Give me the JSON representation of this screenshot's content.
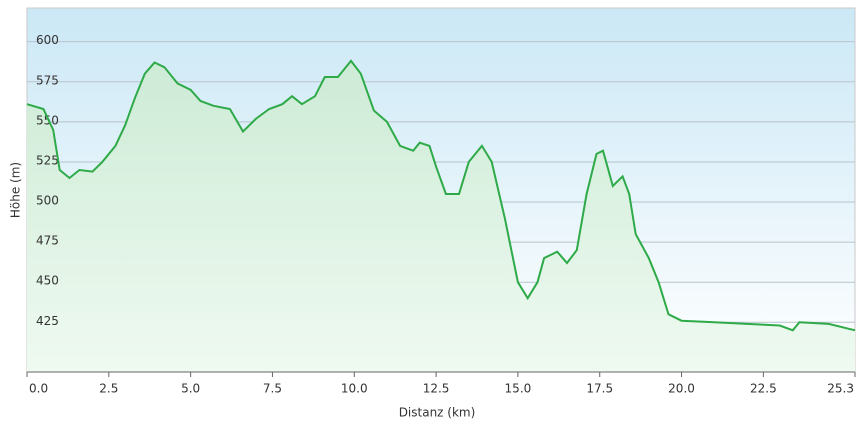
{
  "chart_data": {
    "type": "line",
    "x_label": "Distanz  (km)",
    "y_label": "Höhe (m)",
    "x": [
      0,
      0.5,
      0.8,
      1.0,
      1.3,
      1.6,
      2.0,
      2.3,
      2.7,
      3.0,
      3.3,
      3.6,
      3.9,
      4.2,
      4.6,
      5.0,
      5.3,
      5.7,
      6.2,
      6.6,
      7.0,
      7.4,
      7.8,
      8.1,
      8.4,
      8.8,
      9.1,
      9.5,
      9.9,
      10.2,
      10.6,
      11.0,
      11.4,
      11.8,
      12.0,
      12.3,
      12.5,
      12.8,
      13.2,
      13.5,
      13.9,
      14.2,
      14.6,
      15.0,
      15.3,
      15.6,
      15.8,
      16.2,
      16.5,
      16.8,
      17.1,
      17.4,
      17.6,
      17.9,
      18.2,
      18.4,
      18.6,
      19.0,
      19.3,
      19.6,
      20.0,
      21.0,
      22.0,
      23.0,
      23.4,
      23.6,
      24.5,
      25.3
    ],
    "series": [
      {
        "color": "#2eaa48",
        "values": [
          561,
          558,
          545,
          520,
          515,
          520,
          519,
          525,
          535,
          548,
          565,
          580,
          587,
          584,
          574,
          570,
          563,
          560,
          558,
          544,
          552,
          558,
          561,
          566,
          561,
          566,
          578,
          578,
          588,
          580,
          557,
          550,
          535,
          532,
          537,
          535,
          522,
          505,
          505,
          525,
          535,
          525,
          490,
          450,
          440,
          450,
          465,
          469,
          462,
          470,
          505,
          530,
          532,
          510,
          516,
          505,
          480,
          465,
          450,
          430,
          426,
          425,
          424,
          423,
          420,
          425,
          424,
          420
        ]
      }
    ],
    "xlim": [
      0,
      25.3
    ],
    "ylim": [
      394,
      621
    ],
    "xticks": [
      {
        "value": 0,
        "label": "0.0"
      },
      2.5,
      {
        "value": 5,
        "label": "5.0"
      },
      7.5,
      {
        "value": 10,
        "label": "10.0"
      },
      12.5,
      {
        "value": 15,
        "label": "15.0"
      },
      17.5,
      {
        "value": 20,
        "label": "20.0"
      },
      22.5,
      25.3
    ],
    "yticks": [
      425,
      450,
      475,
      500,
      525,
      550,
      575,
      600
    ],
    "grid": true
  }
}
